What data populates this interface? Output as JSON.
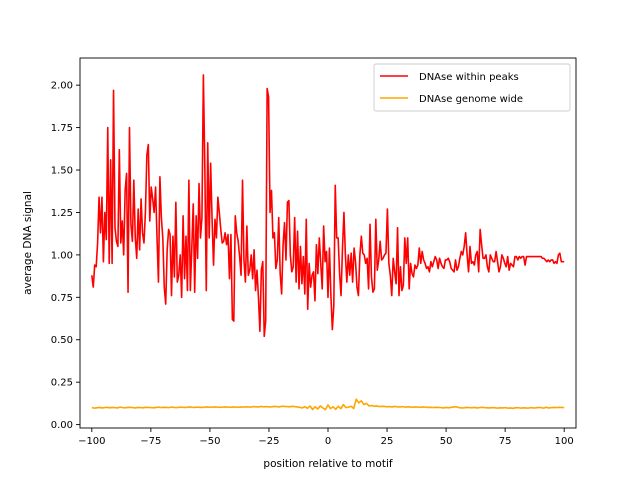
{
  "chart_data": {
    "type": "line",
    "xlabel": "position relative to motif",
    "ylabel": "average DNA signal",
    "xlim": [
      -105,
      105
    ],
    "ylim": [
      -0.02,
      2.16
    ],
    "xticks": [
      -100,
      -75,
      -50,
      -25,
      0,
      25,
      50,
      75,
      100
    ],
    "yticks": [
      0.0,
      0.25,
      0.5,
      0.75,
      1.0,
      1.25,
      1.5,
      1.75,
      2.0
    ],
    "ytick_labels": [
      "0.00",
      "0.25",
      "0.50",
      "0.75",
      "1.00",
      "1.25",
      "1.50",
      "1.75",
      "2.00"
    ],
    "legend_position": "top-right",
    "grid": false,
    "x_start": -100,
    "series": [
      {
        "name": "DNAse within peaks",
        "color": "#ff0000",
        "values": [
          0.88,
          0.81,
          0.94,
          0.93,
          1.07,
          1.34,
          1.13,
          1.34,
          0.96,
          1.25,
          1.09,
          1.75,
          0.95,
          1.56,
          0.95,
          1.97,
          1.16,
          1.08,
          1.05,
          1.62,
          1.07,
          1.2,
          1.0,
          1.38,
          1.48,
          0.78,
          1.75,
          1.18,
          1.08,
          1.44,
          1.1,
          0.98,
          1.27,
          1.03,
          1.33,
          1.13,
          1.07,
          1.25,
          1.59,
          1.65,
          1.2,
          1.4,
          1.33,
          1.25,
          1.4,
          1.1,
          0.84,
          1.46,
          1.22,
          1.1,
          0.81,
          0.71,
          1.03,
          1.15,
          1.12,
          0.76,
          1.11,
          0.87,
          1.31,
          0.84,
          0.88,
          1.0,
          0.75,
          1.23,
          0.86,
          1.11,
          0.79,
          1.44,
          0.79,
          1.04,
          1.3,
          0.78,
          1.23,
          0.98,
          1.42,
          1.1,
          1.22,
          2.06,
          1.51,
          0.79,
          1.66,
          1.1,
          1.54,
          1.21,
          0.94,
          1.21,
          1.1,
          1.34,
          1.25,
          1.15,
          1.07,
          1.08,
          1.13,
          1.06,
          1.12,
          0.86,
          1.12,
          0.62,
          0.61,
          1.23,
          1.13,
          1.08,
          0.99,
          0.88,
          1.44,
          0.97,
          0.84,
          1.17,
          0.88,
          0.91,
          1.0,
          0.86,
          1.03,
          0.79,
          0.91,
          0.75,
          0.55,
          0.91,
          0.96,
          0.52,
          0.61,
          1.98,
          1.93,
          1.25,
          1.38,
          1.1,
          1.13,
          0.92,
          0.97,
          1.22,
          0.89,
          0.77,
          1.06,
          1.19,
          0.97,
          1.31,
          1.32,
          1.0,
          0.9,
          0.93,
          1.22,
          0.84,
          1.14,
          0.8,
          1.05,
          0.83,
          0.99,
          0.77,
          1.21,
          0.68,
          0.95,
          0.81,
          0.88,
          0.9,
          0.73,
          1.06,
          0.89,
          1.1,
          0.95,
          0.8,
          1.17,
          0.96,
          1.02,
          0.75,
          1.04,
          0.76,
          0.56,
          0.7,
          1.41,
          1.1,
          1.1,
          0.89,
          0.76,
          1.04,
          1.25,
          1.0,
          0.84,
          1.0,
          0.88,
          1.01,
          0.84,
          1.04,
          0.96,
          0.81,
          0.76,
          1.0,
          1.11,
          1.01,
          1.0,
          0.95,
          0.98,
          0.8,
          1.18,
          0.87,
          0.78,
          0.8,
          1.21,
          0.91,
          0.97,
          1.08,
          0.97,
          0.98,
          1.0,
          1.01,
          1.27,
          0.95,
          0.88,
          0.76,
          0.98,
          0.9,
          0.83,
          1.16,
          0.76,
          0.93,
          0.79,
          0.82,
          1.1,
          0.95,
          1.1,
          0.8,
          0.95,
          0.89,
          0.87,
          0.94,
          0.92,
          0.94,
          1.04,
          0.95,
          1.02,
          0.97,
          0.95,
          0.92,
          0.93,
          0.9,
          0.96,
          0.93,
          0.96,
          0.99,
          0.97,
          0.92,
          0.98,
          0.95,
          0.93,
          0.92,
          0.97,
          0.97,
          0.98,
          0.96,
          0.92,
          0.91,
          0.9,
          0.97,
          0.91,
          0.93,
          0.98,
          1.02,
          1.0,
          1.05,
          1.13,
          1.0,
          0.9,
          1.05,
          0.95,
          0.96,
          0.94,
          1.0,
          1.02,
          0.9,
          1.15,
          1.06,
          0.98,
          0.98,
          1.0,
          0.93,
          0.9,
          1.0,
          0.98,
          0.96,
          0.96,
          1.02,
          0.96,
          0.9,
          0.93,
          1.0,
          0.98,
          0.95,
          0.93,
          0.99,
          0.91,
          0.95,
          0.94,
          0.93,
          0.99,
          0.99,
          0.97,
          0.99,
          0.98,
          0.99,
          0.99,
          0.94,
          0.99,
          0.99,
          0.99,
          0.99,
          0.99,
          0.99,
          0.99,
          0.99,
          0.99,
          0.99,
          0.99,
          0.98,
          0.98,
          0.97,
          0.96,
          0.97,
          0.96,
          0.97,
          0.97,
          0.95,
          0.96,
          0.95,
          1.0,
          1.01,
          0.96,
          0.96,
          0.96
        ]
      },
      {
        "name": "DNAse genome wide",
        "color": "#ffa500",
        "values": [
          0.1,
          0.097,
          0.099,
          0.101,
          0.098,
          0.1,
          0.102,
          0.099,
          0.101,
          0.1,
          0.098,
          0.103,
          0.1,
          0.099,
          0.101,
          0.102,
          0.1,
          0.098,
          0.101,
          0.1,
          0.099,
          0.102,
          0.101,
          0.1,
          0.099,
          0.101,
          0.103,
          0.1,
          0.102,
          0.101,
          0.1,
          0.103,
          0.101,
          0.1,
          0.102,
          0.103,
          0.101,
          0.102,
          0.104,
          0.102,
          0.101,
          0.103,
          0.102,
          0.101,
          0.103,
          0.104,
          0.102,
          0.103,
          0.104,
          0.103,
          0.102,
          0.103,
          0.104,
          0.103,
          0.102,
          0.104,
          0.103,
          0.102,
          0.104,
          0.103,
          0.105,
          0.104,
          0.103,
          0.106,
          0.105,
          0.104,
          0.107,
          0.105,
          0.106,
          0.104,
          0.105,
          0.107,
          0.106,
          0.104,
          0.108,
          0.107,
          0.106,
          0.105,
          0.108,
          0.106,
          0.104,
          0.102,
          0.098,
          0.106,
          0.096,
          0.11,
          0.089,
          0.105,
          0.092,
          0.11,
          0.098,
          0.088,
          0.116,
          0.094,
          0.105,
          0.09,
          0.108,
          0.094,
          0.118,
          0.1,
          0.103,
          0.108,
          0.095,
          0.15,
          0.128,
          0.14,
          0.118,
          0.125,
          0.11,
          0.112,
          0.108,
          0.11,
          0.106,
          0.108,
          0.107,
          0.105,
          0.106,
          0.104,
          0.107,
          0.105,
          0.104,
          0.106,
          0.103,
          0.105,
          0.104,
          0.102,
          0.104,
          0.103,
          0.102,
          0.104,
          0.103,
          0.101,
          0.102,
          0.1,
          0.102,
          0.101,
          0.1,
          0.098,
          0.101,
          0.099,
          0.102,
          0.104,
          0.105,
          0.1,
          0.098,
          0.099,
          0.101,
          0.1,
          0.099,
          0.101,
          0.098,
          0.1,
          0.102,
          0.1,
          0.099,
          0.098,
          0.1,
          0.099,
          0.097,
          0.099,
          0.098,
          0.1,
          0.097,
          0.098,
          0.096,
          0.099,
          0.1,
          0.097,
          0.099,
          0.098,
          0.097,
          0.1,
          0.098,
          0.099,
          0.101,
          0.1,
          0.097,
          0.102,
          0.098,
          0.1,
          0.101,
          0.1,
          0.102,
          0.101,
          0.1
        ]
      }
    ]
  }
}
